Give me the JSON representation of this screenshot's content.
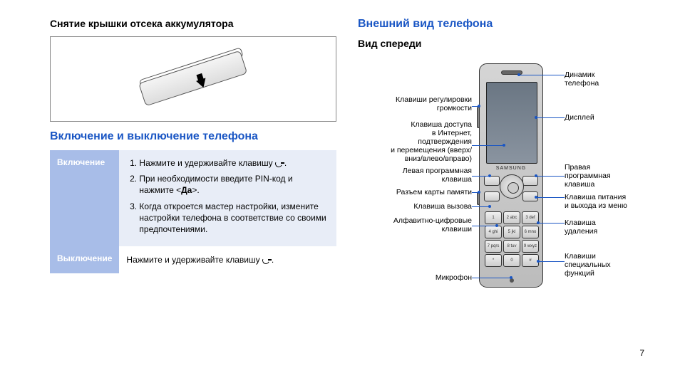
{
  "left": {
    "remove_cover_heading": "Снятие крышки отсека аккумулятора",
    "power_heading": "Включение и выключение телефона",
    "table": {
      "on_label": "Включение",
      "off_label": "Выключение",
      "step1": "Нажмите и удерживайте клавишу ",
      "step2a": "При необходимости введите PIN-код и нажмите <",
      "step2b": "Да",
      "step2c": ">.",
      "step3": "Когда откроется мастер настройки, измените настройки телефона в соответствие со своими предпочтениями.",
      "off_text": "Нажмите и удерживайте клавишу "
    }
  },
  "right": {
    "appearance_heading": "Внешний вид телефона",
    "front_heading": "Вид спереди",
    "brand": "SAMSUNG",
    "keys": [
      "1",
      "2 abc",
      "3 def",
      "4 ghi",
      "5 jkl",
      "6 mno",
      "7 pqrs",
      "8 tuv",
      "9 wxyz",
      "*",
      "0",
      "#"
    ],
    "labels_left": {
      "volume": "Клавиши регулировки\nгромкости",
      "internet": "Клавиша доступа\nв Интернет,\nподтверждения\nи перемещения (вверх/\nвниз/влево/вправо)",
      "soft_left": "Левая программная\nклавиша",
      "slot": "Разъем карты памяти",
      "call": "Клавиша вызова",
      "alnum": "Алфавитно-цифровые\nклавиши",
      "mic": "Микрофон"
    },
    "labels_right": {
      "speaker": "Динамик\nтелефона",
      "display": "Дисплей",
      "soft_right": "Правая\nпрограммная\nклавиша",
      "power": "Клавиша питания\nи выхода из меню",
      "delete": "Клавиша\nудаления",
      "special": "Клавиши\nспециальных\nфункций"
    }
  },
  "page_number": "7",
  "colors": {
    "blue": "#1a56c4",
    "shade": "#a8bde8",
    "light": "#e8edf7"
  }
}
